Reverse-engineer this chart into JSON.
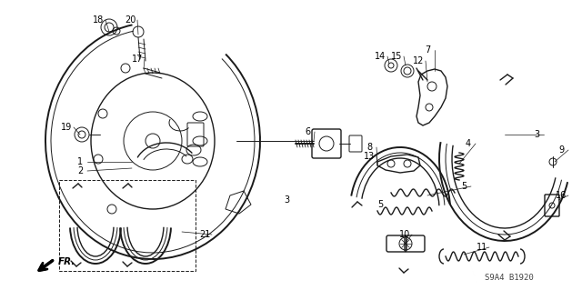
{
  "bg_color": "#ffffff",
  "line_color": "#1a1a1a",
  "watermark": "S9A4 B1920",
  "label_fontsize": 7.0,
  "watermark_fontsize": 6.5
}
